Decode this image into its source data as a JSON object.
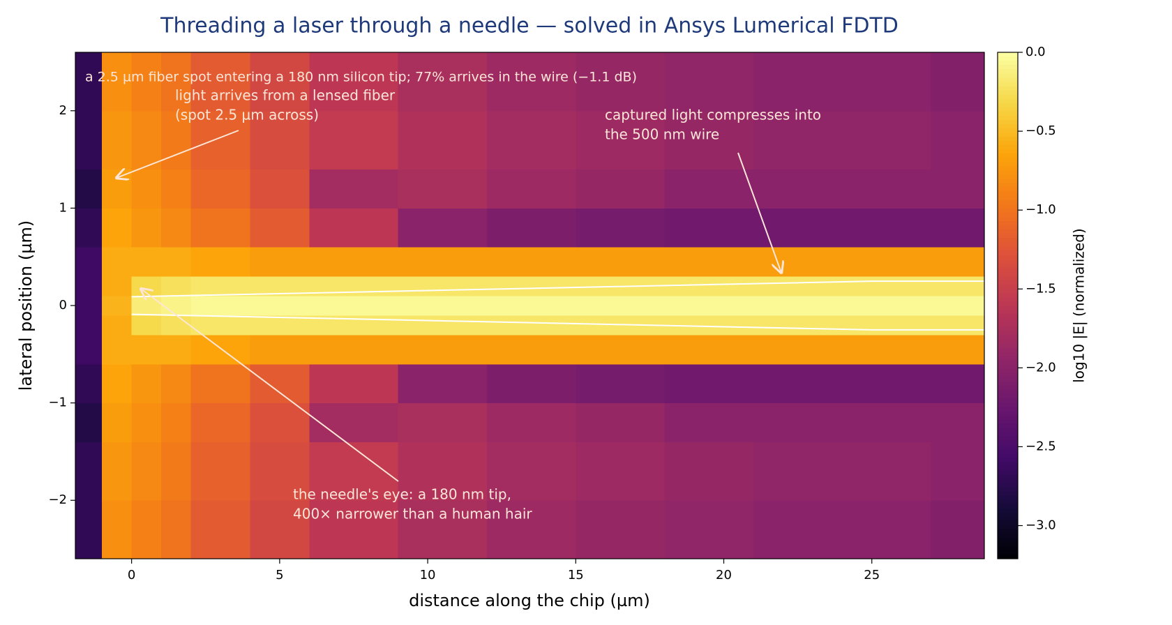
{
  "chart_data": {
    "type": "heatmap",
    "title": "Threading a laser through a needle — solved in Ansys Lumerical FDTD",
    "subtitle": "a 2.5 µm fiber spot entering a 180 nm silicon tip; 77% arrives in the wire (−1.1 dB)",
    "xlabel": "distance along the chip (µm)",
    "ylabel": "lateral position (µm)",
    "colorbar_label": "log10 |E| (normalized)",
    "colormap": "inferno",
    "xlim": [
      -1.9,
      28.8
    ],
    "ylim": [
      -2.6,
      2.6
    ],
    "xticks": [
      0,
      5,
      10,
      15,
      20,
      25
    ],
    "yticks": [
      {
        "value": -2,
        "label": "−2"
      },
      {
        "value": -1,
        "label": "−1"
      },
      0,
      1,
      2
    ],
    "clim": [
      -3.21,
      0
    ],
    "cticks": [
      {
        "value": 0,
        "label": "0.0"
      },
      {
        "value": -0.5,
        "label": "−0.5"
      },
      {
        "value": -1,
        "label": "−1.0"
      },
      {
        "value": -1.5,
        "label": "−1.5"
      },
      {
        "value": -2,
        "label": "−2.0"
      },
      {
        "value": -2.5,
        "label": "−2.5"
      },
      {
        "value": -3,
        "label": "−3.0"
      }
    ],
    "x_edges": [
      -1.9,
      -1,
      0,
      1,
      2,
      4,
      6,
      9,
      12,
      15,
      18,
      21,
      24,
      27,
      28.8
    ],
    "y_edges": [
      -2.6,
      -2.0,
      -1.4,
      -1.0,
      -0.6,
      -0.3,
      -0.1,
      0.1,
      0.3,
      0.6,
      1.0,
      1.4,
      2.0,
      2.6
    ],
    "z": [
      [
        -2.7,
        -0.8,
        -0.9,
        -1.0,
        -1.2,
        -1.4,
        -1.6,
        -1.75,
        -1.85,
        -1.9,
        -1.95,
        -2.0,
        -2.0,
        -2.05
      ],
      [
        -2.7,
        -0.75,
        -0.85,
        -0.95,
        -1.15,
        -1.35,
        -1.55,
        -1.7,
        -1.8,
        -1.85,
        -1.9,
        -1.95,
        -1.95,
        -2.0
      ],
      [
        -2.8,
        -0.7,
        -0.8,
        -0.9,
        -1.1,
        -1.3,
        -1.8,
        -1.75,
        -1.85,
        -1.9,
        -2.0,
        -2.0,
        -2.0,
        -2.0
      ],
      [
        -2.7,
        -0.65,
        -0.75,
        -0.85,
        -1.0,
        -1.2,
        -1.6,
        -2.0,
        -2.1,
        -2.15,
        -2.2,
        -2.2,
        -2.2,
        -2.2
      ],
      [
        -2.6,
        -0.6,
        -0.6,
        -0.6,
        -0.65,
        -0.7,
        -0.7,
        -0.7,
        -0.7,
        -0.7,
        -0.7,
        -0.7,
        -0.7,
        -0.7
      ],
      [
        -2.6,
        -0.6,
        -0.3,
        -0.25,
        -0.2,
        -0.2,
        -0.2,
        -0.2,
        -0.2,
        -0.2,
        -0.2,
        -0.2,
        -0.2,
        -0.2
      ],
      [
        -2.6,
        -0.55,
        -0.15,
        -0.1,
        -0.05,
        -0.05,
        -0.05,
        -0.05,
        -0.05,
        -0.05,
        -0.05,
        -0.05,
        -0.05,
        -0.05
      ],
      [
        -2.6,
        -0.6,
        -0.3,
        -0.25,
        -0.2,
        -0.2,
        -0.2,
        -0.2,
        -0.2,
        -0.2,
        -0.2,
        -0.2,
        -0.2,
        -0.2
      ],
      [
        -2.6,
        -0.6,
        -0.6,
        -0.6,
        -0.65,
        -0.7,
        -0.7,
        -0.7,
        -0.7,
        -0.7,
        -0.7,
        -0.7,
        -0.7,
        -0.7
      ],
      [
        -2.7,
        -0.65,
        -0.75,
        -0.85,
        -1.0,
        -1.2,
        -1.6,
        -2.0,
        -2.1,
        -2.15,
        -2.2,
        -2.2,
        -2.2,
        -2.2
      ],
      [
        -2.8,
        -0.7,
        -0.8,
        -0.9,
        -1.1,
        -1.3,
        -1.8,
        -1.75,
        -1.85,
        -1.9,
        -2.0,
        -2.0,
        -2.0,
        -2.0
      ],
      [
        -2.7,
        -0.75,
        -0.85,
        -0.95,
        -1.15,
        -1.35,
        -1.55,
        -1.7,
        -1.8,
        -1.85,
        -1.9,
        -1.95,
        -1.95,
        -2.0
      ],
      [
        -2.7,
        -0.8,
        -0.9,
        -1.0,
        -1.2,
        -1.4,
        -1.6,
        -1.75,
        -1.85,
        -1.9,
        -1.95,
        -2.0,
        -2.0,
        -2.05
      ]
    ],
    "outline_color": "#ffffff",
    "outlines": [
      {
        "x": [
          0,
          25,
          28.8
        ],
        "y": [
          0.09,
          0.25,
          0.25
        ]
      },
      {
        "x": [
          0,
          25,
          28.8
        ],
        "y": [
          -0.09,
          -0.25,
          -0.25
        ]
      }
    ],
    "annotations": [
      {
        "lines": [
          "light arrives from a lensed fiber",
          "(spot 2.5 µm across)"
        ]
      },
      {
        "lines": [
          "captured light compresses into",
          "the 500 nm wire"
        ]
      },
      {
        "lines": [
          "the needle's eye: a 180 nm tip,",
          "400× narrower than a human hair"
        ]
      }
    ]
  }
}
